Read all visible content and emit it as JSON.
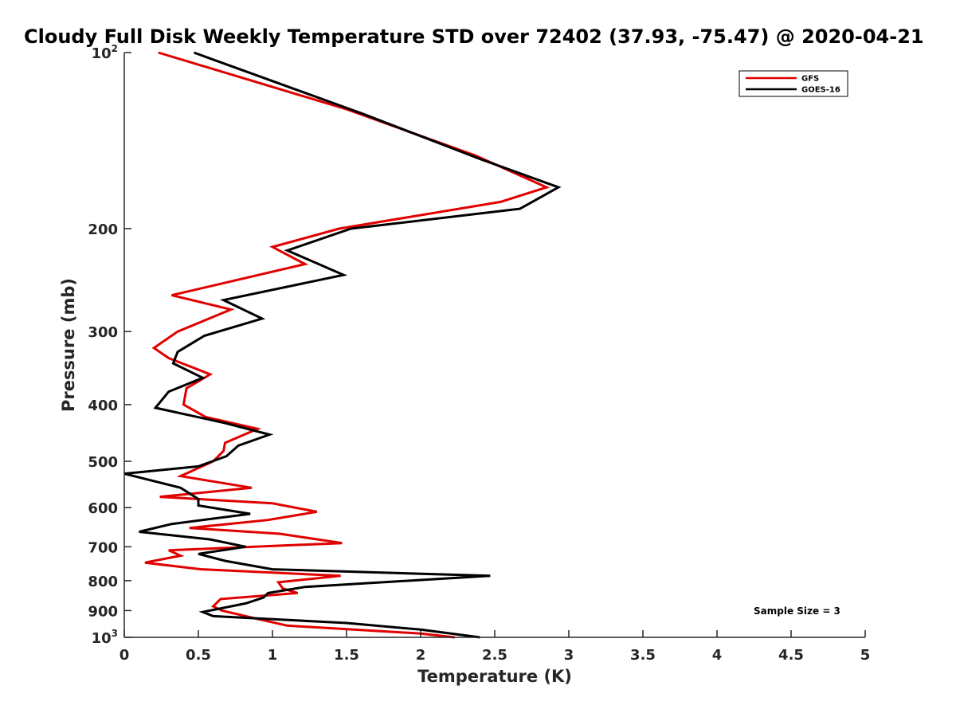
{
  "chart_data": {
    "type": "line",
    "title": "Cloudy Full Disk Weekly Temperature STD over 72402 (37.93, -75.47) @ 2020-04-21",
    "xlabel": "Temperature (K)",
    "ylabel": "Pressure (mb)",
    "xlim": [
      0,
      5
    ],
    "ylim": [
      100,
      1000
    ],
    "y_scale": "log",
    "y_reversed": true,
    "x_ticks": [
      "0",
      "0.5",
      "1",
      "1.5",
      "2",
      "2.5",
      "3",
      "3.5",
      "4",
      "4.5",
      "5"
    ],
    "y_ticks": [
      {
        "value": 100,
        "base": "10",
        "exp": "2"
      },
      {
        "value": 200,
        "label": "200"
      },
      {
        "value": 300,
        "label": "300"
      },
      {
        "value": 400,
        "label": "400"
      },
      {
        "value": 500,
        "label": "500"
      },
      {
        "value": 600,
        "label": "600"
      },
      {
        "value": 700,
        "label": "700"
      },
      {
        "value": 800,
        "label": "800"
      },
      {
        "value": 900,
        "label": "900"
      },
      {
        "value": 1000,
        "base": "10",
        "exp": "3"
      }
    ],
    "legend_position": "top-right",
    "annotation": "Sample Size = 3",
    "series": [
      {
        "name": "GFS",
        "color": "#e00000",
        "points": [
          [
            0.23,
            100
          ],
          [
            1.5,
            125
          ],
          [
            2.37,
            150
          ],
          [
            2.85,
            170
          ],
          [
            2.54,
            180
          ],
          [
            1.45,
            200
          ],
          [
            1.0,
            215
          ],
          [
            1.22,
            230
          ],
          [
            0.32,
            260
          ],
          [
            0.72,
            275
          ],
          [
            0.36,
            300
          ],
          [
            0.2,
            320
          ],
          [
            0.3,
            333
          ],
          [
            0.58,
            355
          ],
          [
            0.42,
            375
          ],
          [
            0.4,
            400
          ],
          [
            0.55,
            420
          ],
          [
            0.9,
            440
          ],
          [
            0.68,
            465
          ],
          [
            0.67,
            480
          ],
          [
            0.6,
            500
          ],
          [
            0.38,
            530
          ],
          [
            0.86,
            555
          ],
          [
            0.24,
            575
          ],
          [
            1.0,
            590
          ],
          [
            1.3,
            610
          ],
          [
            0.97,
            630
          ],
          [
            0.44,
            650
          ],
          [
            1.05,
            665
          ],
          [
            1.47,
            690
          ],
          [
            0.3,
            710
          ],
          [
            0.38,
            725
          ],
          [
            0.14,
            745
          ],
          [
            0.52,
            765
          ],
          [
            1.46,
            785
          ],
          [
            1.04,
            805
          ],
          [
            1.07,
            825
          ],
          [
            1.17,
            840
          ],
          [
            0.65,
            860
          ],
          [
            0.6,
            885
          ],
          [
            0.66,
            900
          ],
          [
            0.9,
            930
          ],
          [
            1.1,
            955
          ],
          [
            2.0,
            985
          ],
          [
            2.23,
            1000
          ]
        ]
      },
      {
        "name": "GOES-16",
        "color": "#000000",
        "points": [
          [
            0.47,
            100
          ],
          [
            1.6,
            127
          ],
          [
            2.4,
            152
          ],
          [
            2.93,
            170
          ],
          [
            2.67,
            185
          ],
          [
            1.53,
            200
          ],
          [
            1.1,
            218
          ],
          [
            1.48,
            240
          ],
          [
            0.67,
            265
          ],
          [
            0.93,
            285
          ],
          [
            0.54,
            305
          ],
          [
            0.36,
            325
          ],
          [
            0.33,
            340
          ],
          [
            0.53,
            360
          ],
          [
            0.3,
            380
          ],
          [
            0.21,
            405
          ],
          [
            0.68,
            430
          ],
          [
            0.98,
            450
          ],
          [
            0.77,
            470
          ],
          [
            0.69,
            490
          ],
          [
            0.5,
            510
          ],
          [
            0.0,
            525
          ],
          [
            0.38,
            555
          ],
          [
            0.5,
            580
          ],
          [
            0.5,
            595
          ],
          [
            0.85,
            615
          ],
          [
            0.32,
            640
          ],
          [
            0.1,
            660
          ],
          [
            0.58,
            680
          ],
          [
            0.82,
            700
          ],
          [
            0.5,
            720
          ],
          [
            0.68,
            740
          ],
          [
            1.0,
            765
          ],
          [
            2.47,
            785
          ],
          [
            1.22,
            820
          ],
          [
            0.97,
            840
          ],
          [
            0.94,
            855
          ],
          [
            0.82,
            875
          ],
          [
            0.53,
            905
          ],
          [
            0.6,
            920
          ],
          [
            1.5,
            945
          ],
          [
            2.0,
            970
          ],
          [
            2.4,
            1000
          ]
        ]
      }
    ]
  }
}
